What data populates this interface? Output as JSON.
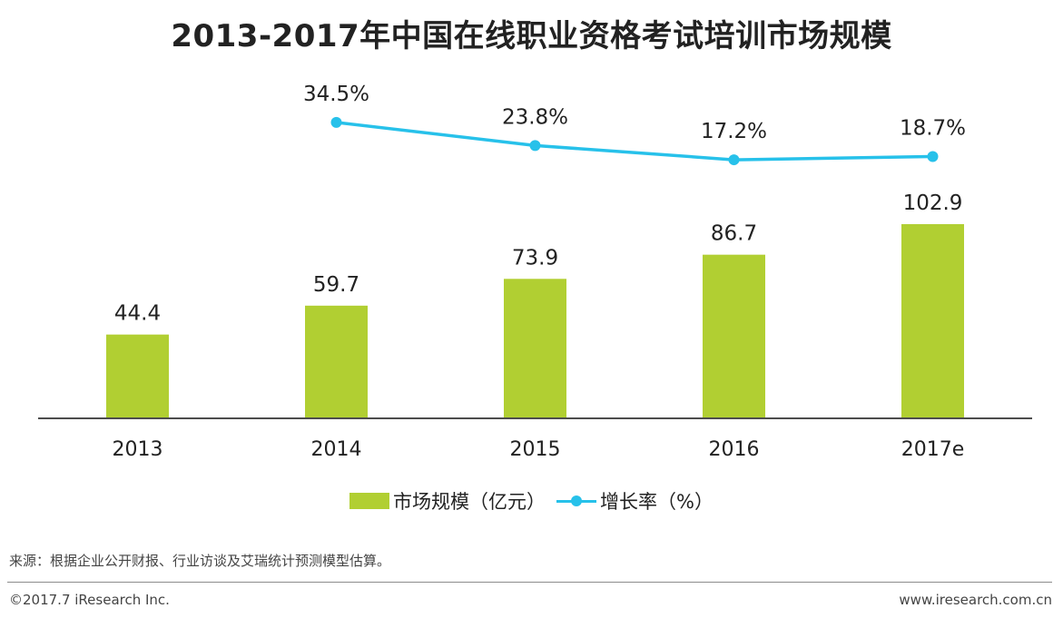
{
  "chart_data": {
    "type": "bar",
    "title": "2013-2017年中国在线职业资格考试培训市场规模",
    "categories": [
      "2013",
      "2014",
      "2015",
      "2016",
      "2017e"
    ],
    "series": [
      {
        "name": "市场规模（亿元）",
        "type": "bar",
        "values": [
          44.4,
          59.7,
          73.9,
          86.7,
          102.9
        ],
        "labels": [
          "44.4",
          "59.7",
          "73.9",
          "86.7",
          "102.9"
        ]
      },
      {
        "name": "增长率（%）",
        "type": "line",
        "values": [
          null,
          34.5,
          23.8,
          17.2,
          18.7
        ],
        "labels": [
          "",
          "34.5%",
          "23.8%",
          "17.2%",
          "18.7%"
        ]
      }
    ],
    "xlabel": "",
    "ylabel": "",
    "ylim": [
      0,
      140
    ],
    "grid": false,
    "legend": "bottom"
  },
  "colors": {
    "bar": "#b1cf32",
    "line": "#27c1ea",
    "axis": "#4d4d4d"
  },
  "footer": {
    "source": "来源：根据企业公开财报、行业访谈及艾瑞统计预测模型估算。",
    "copyright": "©2017.7 iResearch Inc.",
    "website": "www.iresearch.com.cn"
  }
}
